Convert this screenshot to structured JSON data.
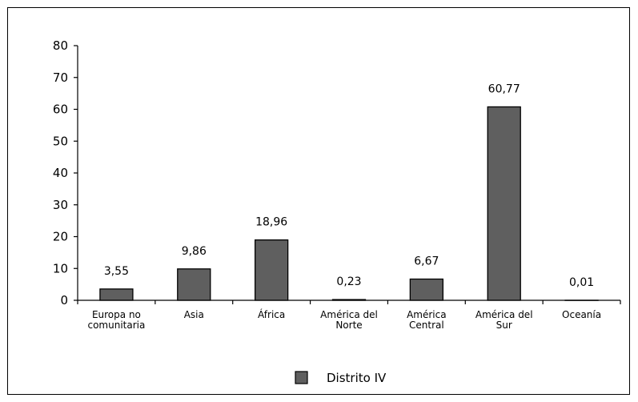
{
  "chart_data": {
    "type": "bar",
    "categories": [
      [
        "Europa no",
        "comunitaria"
      ],
      [
        "Asia"
      ],
      [
        "África"
      ],
      [
        "América del",
        "Norte"
      ],
      [
        "América",
        "Central"
      ],
      [
        "América del",
        "Sur"
      ],
      [
        "Oceanía"
      ]
    ],
    "series": [
      {
        "name": "Distrito IV",
        "values": [
          3.55,
          9.86,
          18.96,
          0.23,
          6.67,
          60.77,
          0.01
        ],
        "labels": [
          "3,55",
          "9,86",
          "18,96",
          "0,23",
          "6,67",
          "60,77",
          "0,01"
        ],
        "color": "#5f5f5f"
      }
    ],
    "ylim": [
      0,
      80
    ],
    "yticks": [
      "0",
      "10",
      "20",
      "30",
      "40",
      "50",
      "60",
      "70",
      "80"
    ],
    "legend_position": "bottom"
  }
}
